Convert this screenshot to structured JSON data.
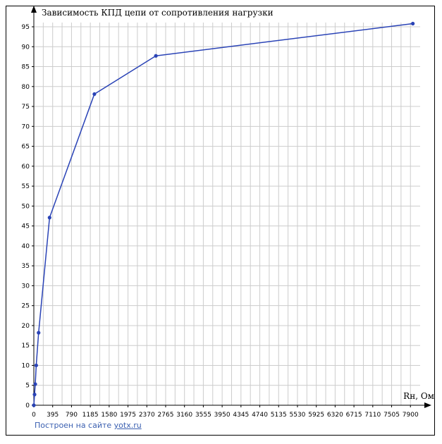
{
  "chart_data": {
    "type": "line",
    "title": "Зависимость КПД цепи от сопротивления нагрузки",
    "xlabel": "Rн, Ом",
    "ylabel": "",
    "xlim": [
      0,
      8100
    ],
    "ylim": [
      0,
      97
    ],
    "x_ticks": [
      "0",
      "395",
      "790",
      "1185",
      "1580",
      "1975",
      "2370",
      "2765",
      "3160",
      "3555",
      "3950",
      "4345",
      "4740",
      "5135",
      "5530",
      "5925",
      "6320",
      "6715",
      "7110",
      "7505",
      "7900"
    ],
    "y_ticks": [
      "0",
      "5",
      "10",
      "15",
      "20",
      "25",
      "30",
      "35",
      "40",
      "45",
      "50",
      "55",
      "60",
      "65",
      "70",
      "75",
      "80",
      "85",
      "90",
      "95"
    ],
    "grid": true,
    "line_color": "#2a43b6",
    "series": [
      {
        "x": [
          0,
          15,
          30,
          50,
          100,
          330,
          1270,
          2560,
          7950
        ],
        "y": [
          0,
          2.7,
          5.3,
          10,
          18.2,
          47.1,
          78.1,
          87.7,
          95.8
        ]
      }
    ]
  },
  "footer": {
    "prefix": "Построен на сайте ",
    "link": "yotx.ru"
  }
}
